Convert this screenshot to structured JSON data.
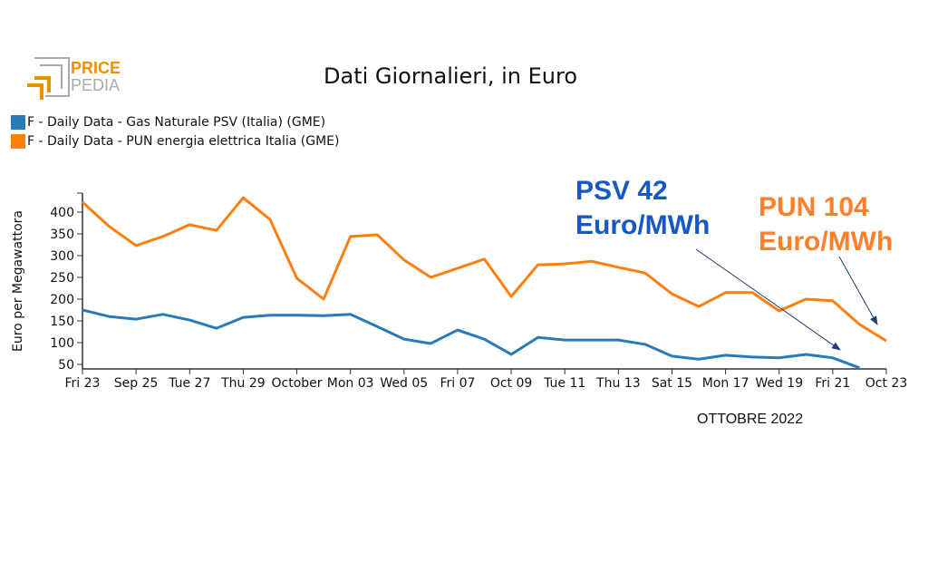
{
  "logo": {
    "text_top": "PRICE",
    "text_bottom": "PEDIA"
  },
  "chart_data": {
    "type": "line",
    "title": "Dati Giornalieri, in Euro",
    "ylabel": "Euro per Megawattora",
    "xlabel": "OTTOBRE 2022",
    "ylim": [
      40,
      440
    ],
    "yticks": [
      50,
      100,
      150,
      200,
      250,
      300,
      350,
      400
    ],
    "x": [
      "2022-09-23",
      "2022-09-24",
      "2022-09-25",
      "2022-09-26",
      "2022-09-27",
      "2022-09-28",
      "2022-09-29",
      "2022-09-30",
      "2022-10-01",
      "2022-10-02",
      "2022-10-03",
      "2022-10-04",
      "2022-10-05",
      "2022-10-06",
      "2022-10-07",
      "2022-10-08",
      "2022-10-09",
      "2022-10-10",
      "2022-10-11",
      "2022-10-12",
      "2022-10-13",
      "2022-10-14",
      "2022-10-15",
      "2022-10-16",
      "2022-10-17",
      "2022-10-18",
      "2022-10-19",
      "2022-10-20",
      "2022-10-21",
      "2022-10-22",
      "2022-10-23"
    ],
    "xtick_labels": [
      "Fri 23",
      "Sep 25",
      "Tue 27",
      "Thu 29",
      "October",
      "Mon 03",
      "Wed 05",
      "Fri 07",
      "Oct 09",
      "Tue 11",
      "Thu 13",
      "Sat 15",
      "Mon 17",
      "Wed 19",
      "Fri 21",
      "Oct 23"
    ],
    "legend_position": "top-left",
    "grid": false,
    "series": [
      {
        "name": "F - Daily Data - Gas Naturale PSV (Italia) (GME)",
        "color": "#2a7ab8",
        "values": [
          175,
          160,
          154,
          165,
          152,
          133,
          158,
          163,
          163,
          162,
          165,
          137,
          108,
          98,
          129,
          108,
          73,
          112,
          106,
          106,
          106,
          96,
          69,
          62,
          71,
          67,
          65,
          73,
          65,
          42,
          null
        ]
      },
      {
        "name": "F - Daily Data - PUN energia elettrica Italia (GME)",
        "color": "#ff7f0e",
        "values": [
          423,
          367,
          323,
          344,
          371,
          358,
          433,
          383,
          248,
          200,
          344,
          348,
          290,
          250,
          271,
          292,
          206,
          279,
          281,
          287,
          273,
          260,
          212,
          183,
          215,
          215,
          173,
          200,
          196,
          142,
          104
        ]
      }
    ],
    "annotations": [
      {
        "line1": "PSV 42",
        "line2": "Euro/MWh",
        "color": "#1658c8"
      },
      {
        "line1": "PUN 104",
        "line2": "Euro/MWh",
        "color": "#ff7f2a"
      }
    ]
  }
}
